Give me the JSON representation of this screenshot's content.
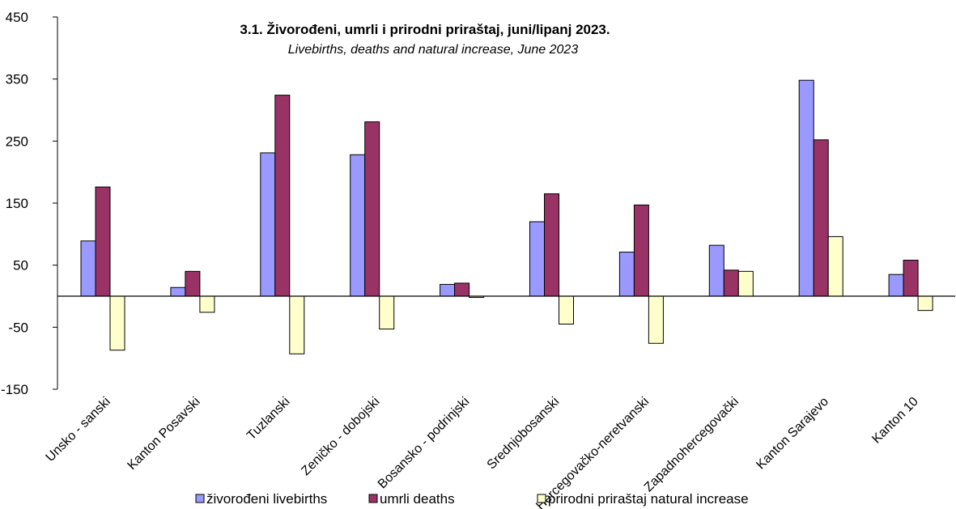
{
  "chart_data": {
    "type": "bar",
    "title": "3.1. Živorođeni, umrli i prirodni priraštaj, juni/lipanj 2023.",
    "subtitle": "Livebirths, deaths and natural increase, June 2023",
    "categories": [
      "Unsko - sanski",
      "Kanton Posavski",
      "Tuzlanski",
      "Zeničko - dobojski",
      "Bosansko - podrinjski",
      "Srednjobosanski",
      "Hercegovačko-neretvanski",
      "Zapadnohercegovački",
      "Kanton Sarajevo",
      "Kanton 10"
    ],
    "series": [
      {
        "name": "živorođeni livebirths",
        "color": "#9999ff",
        "values": [
          89,
          14,
          231,
          228,
          19,
          120,
          71,
          82,
          348,
          35
        ]
      },
      {
        "name": "umrli deaths",
        "color": "#993366",
        "values": [
          176,
          40,
          324,
          281,
          21,
          165,
          147,
          42,
          252,
          58
        ]
      },
      {
        "name": "prirodni priraštaj natural increase",
        "color": "#ffffcc",
        "values": [
          -87,
          -26,
          -93,
          -53,
          -2,
          -45,
          -76,
          40,
          96,
          -23
        ]
      }
    ],
    "ylim": [
      -150,
      450
    ],
    "yticks": [
      450,
      350,
      250,
      150,
      50,
      -50,
      -150
    ],
    "grid": false,
    "legend": "bottom"
  }
}
